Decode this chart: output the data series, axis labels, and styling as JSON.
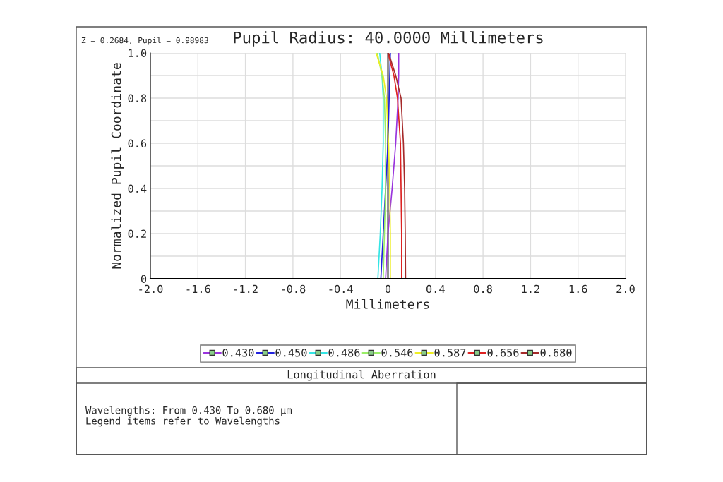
{
  "chart_data": {
    "type": "line",
    "title": "Pupil Radius: 40.0000 Millimeters",
    "xlabel": "Millimeters",
    "ylabel": "Normalized Pupil Coordinate",
    "legend": "bottom",
    "grid": true,
    "line_style": "solid",
    "marker": "none",
    "xlim": [
      -2,
      2
    ],
    "ylim": [
      0,
      1
    ],
    "xticks": [
      {
        "value": -2,
        "label": "-2.0"
      },
      {
        "value": -1.6,
        "label": "-1.6"
      },
      {
        "value": -1.2,
        "label": "-1.2"
      },
      {
        "value": -0.8,
        "label": "-0.8"
      },
      {
        "value": -0.4,
        "label": "-0.4"
      },
      0,
      0.4,
      0.8,
      1.2,
      1.6,
      {
        "value": 2,
        "label": "2.0"
      }
    ],
    "yticks": [
      0,
      {
        "value": 0.1,
        "label": null
      },
      0.2,
      {
        "value": 0.3,
        "label": null
      },
      0.4,
      {
        "value": 0.5,
        "label": null
      },
      0.6,
      {
        "value": 0.7,
        "label": null
      },
      0.8,
      {
        "value": 0.9,
        "label": null
      },
      {
        "value": 1,
        "label": "1.0"
      }
    ],
    "ref_lines": [
      {
        "axis": "x",
        "value": 0,
        "color": "#000000"
      }
    ],
    "annotations": [
      "Z = 0.2684, Pupil = 0.98983",
      "Longitudinal Aberration",
      "Wavelengths: From 0.430 To 0.680 µm\nLegend items refer to Wavelengths"
    ],
    "series": [
      {
        "name": "0.430",
        "color": "#9933dd",
        "x": [
          -0.02,
          0.0,
          0.035,
          0.065,
          0.085,
          0.09,
          0.09
        ],
        "values": [
          0,
          0.2,
          0.4,
          0.6,
          0.8,
          0.9,
          1.0
        ]
      },
      {
        "name": "0.450",
        "color": "#2222dd",
        "x": [
          -0.06,
          -0.04,
          -0.02,
          0.0,
          0.01,
          0.015,
          0.02
        ],
        "values": [
          0,
          0.2,
          0.4,
          0.6,
          0.8,
          0.9,
          1.0
        ]
      },
      {
        "name": "0.486",
        "color": "#33e5e5",
        "x": [
          -0.085,
          -0.065,
          -0.05,
          -0.04,
          -0.04,
          -0.05,
          -0.07
        ],
        "values": [
          0,
          0.2,
          0.4,
          0.6,
          0.8,
          0.9,
          1.0
        ]
      },
      {
        "name": "0.546",
        "color": "#99ee66",
        "x": [
          -0.04,
          -0.03,
          -0.02,
          -0.02,
          -0.03,
          -0.05,
          -0.09
        ],
        "values": [
          0,
          0.2,
          0.4,
          0.6,
          0.8,
          0.9,
          1.0
        ]
      },
      {
        "name": "0.587",
        "color": "#eeee22",
        "x": [
          0.02,
          0.02,
          0.015,
          0.005,
          -0.013,
          -0.04,
          -0.1
        ],
        "values": [
          0,
          0.2,
          0.4,
          0.6,
          0.8,
          0.9,
          1.0
        ]
      },
      {
        "name": "0.656",
        "color": "#dd2222",
        "x": [
          0.115,
          0.115,
          0.11,
          0.105,
          0.08,
          0.05,
          0.0
        ],
        "values": [
          0,
          0.2,
          0.4,
          0.6,
          0.8,
          0.9,
          1.0
        ]
      },
      {
        "name": "0.680",
        "color": "#a52a2a",
        "x": [
          0.148,
          0.145,
          0.14,
          0.13,
          0.11,
          0.065,
          0.005
        ],
        "values": [
          0,
          0.2,
          0.4,
          0.6,
          0.8,
          0.9,
          1.0
        ]
      }
    ]
  }
}
